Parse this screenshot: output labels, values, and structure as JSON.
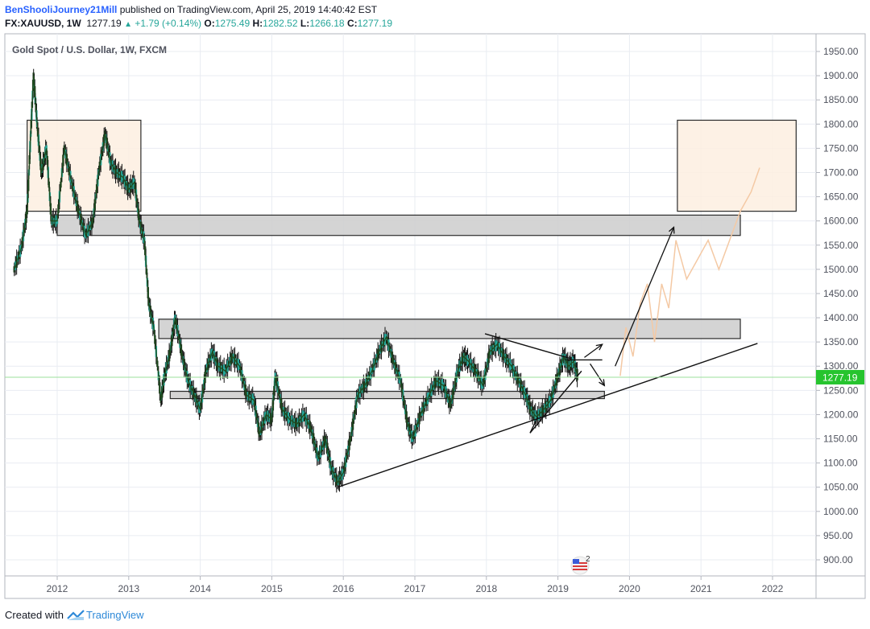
{
  "header": {
    "user": "BenShooliJourney21Mill",
    "published": "published on TradingView.com, April 25, 2019 14:40:42 EST",
    "symbol_interval": "FX:XAUUSD, 1W",
    "last": "1277.19",
    "change": "+1.79 (+0.14%)",
    "open_label": "O:",
    "open": "1275.49",
    "high_label": "H:",
    "high": "1282.52",
    "low_label": "L:",
    "low": "1266.18",
    "close_label": "C:",
    "close": "1277.19"
  },
  "footer": {
    "created_with": "Created with",
    "brand": "TradingView"
  },
  "colors": {
    "up": "#26a69a",
    "grid": "#e9ecf2",
    "zone_grey": "#cfcfcf",
    "zone_tan": "#fdeee0",
    "price_tag": "#26c42e",
    "projection": "#f4c9a4"
  },
  "chart_data": {
    "type": "line",
    "title": "Gold Spot / U.S. Dollar, 1W, FXCM",
    "x_ticks": [
      "2012",
      "2013",
      "2014",
      "2015",
      "2016",
      "2017",
      "2018",
      "2019",
      "2020",
      "2021",
      "2022"
    ],
    "y_ticks": [
      "1950.00",
      "1900.00",
      "1850.00",
      "1800.00",
      "1750.00",
      "1700.00",
      "1650.00",
      "1600.00",
      "1550.00",
      "1500.00",
      "1450.00",
      "1400.00",
      "1350.00",
      "1300.00",
      "1250.00",
      "1200.00",
      "1150.00",
      "1100.00",
      "1050.00",
      "1000.00",
      "950.00",
      "900.00"
    ],
    "ylim": [
      880,
      1975
    ],
    "xlim": [
      2011.35,
      2022.6
    ],
    "last_price_label": "1277.19",
    "last_price": 1277.19,
    "series": [
      {
        "x": [
          2011.4,
          2011.5,
          2011.58,
          2011.63,
          2011.67,
          2011.72,
          2011.78,
          2011.85,
          2011.92,
          2012.0,
          2012.1,
          2012.2,
          2012.3,
          2012.4,
          2012.5,
          2012.58,
          2012.67,
          2012.75,
          2012.83,
          2012.92,
          2013.0,
          2013.08,
          2013.15,
          2013.22,
          2013.28,
          2013.35,
          2013.45,
          2013.5,
          2013.58,
          2013.65,
          2013.75,
          2013.83,
          2013.92,
          2014.0,
          2014.08,
          2014.17,
          2014.25,
          2014.35,
          2014.45,
          2014.55,
          2014.65,
          2014.75,
          2014.83,
          2014.92,
          2015.0,
          2015.05,
          2015.15,
          2015.25,
          2015.35,
          2015.45,
          2015.55,
          2015.65,
          2015.75,
          2015.83,
          2015.92,
          2016.0,
          2016.1,
          2016.2,
          2016.3,
          2016.4,
          2016.5,
          2016.6,
          2016.7,
          2016.8,
          2016.9,
          2016.97,
          2017.08,
          2017.2,
          2017.3,
          2017.4,
          2017.5,
          2017.6,
          2017.68,
          2017.75,
          2017.85,
          2017.95,
          2018.05,
          2018.15,
          2018.25,
          2018.35,
          2018.45,
          2018.55,
          2018.62,
          2018.7,
          2018.8,
          2018.9,
          2019.0,
          2019.08,
          2019.15,
          2019.22,
          2019.28
        ],
        "y": [
          1500,
          1545,
          1620,
          1780,
          1900,
          1800,
          1700,
          1750,
          1600,
          1600,
          1750,
          1680,
          1620,
          1570,
          1600,
          1700,
          1780,
          1720,
          1700,
          1690,
          1665,
          1680,
          1600,
          1560,
          1430,
          1380,
          1230,
          1280,
          1330,
          1400,
          1320,
          1270,
          1240,
          1210,
          1290,
          1330,
          1300,
          1290,
          1320,
          1300,
          1240,
          1230,
          1160,
          1200,
          1190,
          1280,
          1210,
          1190,
          1180,
          1200,
          1170,
          1110,
          1150,
          1090,
          1060,
          1080,
          1150,
          1240,
          1260,
          1290,
          1330,
          1360,
          1310,
          1270,
          1180,
          1150,
          1200,
          1240,
          1270,
          1260,
          1220,
          1290,
          1320,
          1310,
          1290,
          1260,
          1330,
          1345,
          1320,
          1300,
          1270,
          1240,
          1210,
          1195,
          1210,
          1230,
          1280,
          1320,
          1300,
          1310,
          1277
        ]
      }
    ],
    "zones": [
      {
        "name": "tan-supply-left",
        "x0": 2011.58,
        "x1": 2013.17,
        "y0": 1620,
        "y1": 1808
      },
      {
        "name": "grey-resistance-1600",
        "x0": 2012.0,
        "x1": 2021.55,
        "y0": 1570,
        "y1": 1612
      },
      {
        "name": "grey-resistance-1380",
        "x0": 2013.42,
        "x1": 2021.55,
        "y0": 1357,
        "y1": 1397
      },
      {
        "name": "grey-support-1240",
        "x0": 2013.58,
        "x1": 2019.65,
        "y0": 1233,
        "y1": 1248
      },
      {
        "name": "tan-target-right",
        "x0": 2020.67,
        "x1": 2022.33,
        "y0": 1620,
        "y1": 1808
      }
    ],
    "trendlines": [
      {
        "name": "rising-support-long",
        "points": [
          [
            2015.92,
            1050
          ],
          [
            2021.79,
            1347
          ]
        ]
      },
      {
        "name": "rising-support-short",
        "points": [
          [
            2018.61,
            1162
          ],
          [
            2019.33,
            1290
          ]
        ]
      },
      {
        "name": "descending-top",
        "points": [
          [
            2017.98,
            1367
          ],
          [
            2019.17,
            1316
          ]
        ]
      },
      {
        "name": "triangle-cap",
        "points": [
          [
            2018.61,
            1162
          ],
          [
            2018.72,
            1195
          ]
        ]
      },
      {
        "name": "box-top",
        "points": [
          [
            2019.1,
            1313
          ],
          [
            2019.62,
            1313
          ]
        ]
      }
    ],
    "arrows": [
      {
        "name": "long-up-arrow",
        "from": [
          2019.8,
          1300
        ],
        "to": [
          2020.62,
          1587
        ]
      },
      {
        "name": "short-up-arrow",
        "from": [
          2019.37,
          1318
        ],
        "to": [
          2019.62,
          1345
        ]
      },
      {
        "name": "short-down-arrow",
        "from": [
          2019.45,
          1305
        ],
        "to": [
          2019.65,
          1260
        ]
      }
    ],
    "projection": {
      "x": [
        2019.87,
        2019.95,
        2020.05,
        2020.15,
        2020.25,
        2020.35,
        2020.45,
        2020.55,
        2020.65,
        2020.8,
        2020.95,
        2021.1,
        2021.25,
        2021.4,
        2021.55,
        2021.7,
        2021.82
      ],
      "y": [
        1280,
        1380,
        1320,
        1430,
        1470,
        1350,
        1470,
        1420,
        1560,
        1480,
        1520,
        1560,
        1500,
        1560,
        1620,
        1660,
        1710
      ]
    }
  }
}
